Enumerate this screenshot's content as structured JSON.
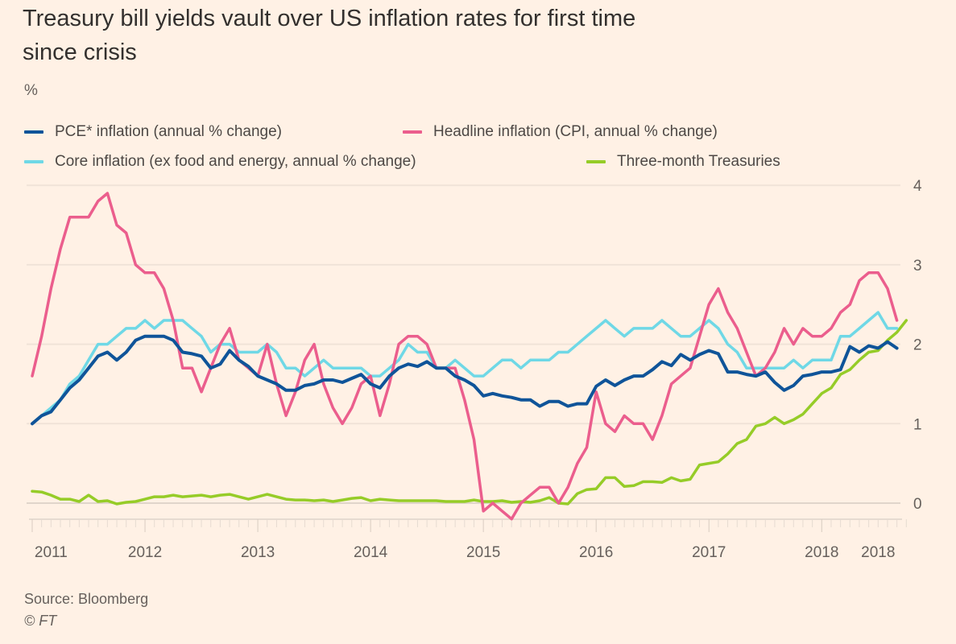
{
  "chart_data": {
    "type": "line",
    "title": "Treasury bill yields vault over US inflation rates for first time since crisis",
    "ylabel": "%",
    "ylim": [
      -0.2,
      4
    ],
    "yticks": [
      0,
      1,
      2,
      3,
      4
    ],
    "xlim": [
      "2011-01",
      "2018-10"
    ],
    "xticks": [
      {
        "x": "2011-03",
        "label": "2011"
      },
      {
        "x": "2012-01",
        "label": "2012"
      },
      {
        "x": "2013-01",
        "label": "2013"
      },
      {
        "x": "2014-01",
        "label": "2014"
      },
      {
        "x": "2015-01",
        "label": "2015"
      },
      {
        "x": "2016-01",
        "label": "2016"
      },
      {
        "x": "2017-01",
        "label": "2017"
      },
      {
        "x": "2018-01",
        "label": "2018"
      },
      {
        "x": "2018-07",
        "label": "2018"
      }
    ],
    "grid": true,
    "legend_placement": "top",
    "x_start": "2011-01",
    "x_step": "month",
    "series": [
      {
        "name": "PCE* inflation (annual % change)",
        "color": "#0f5499",
        "values": [
          1.0,
          1.1,
          1.15,
          1.3,
          1.45,
          1.55,
          1.7,
          1.85,
          1.9,
          1.8,
          1.9,
          2.05,
          2.1,
          2.1,
          2.1,
          2.05,
          1.9,
          1.88,
          1.85,
          1.7,
          1.75,
          1.92,
          1.8,
          1.72,
          1.6,
          1.55,
          1.5,
          1.42,
          1.42,
          1.48,
          1.5,
          1.55,
          1.55,
          1.52,
          1.57,
          1.62,
          1.5,
          1.45,
          1.6,
          1.7,
          1.75,
          1.72,
          1.78,
          1.7,
          1.7,
          1.6,
          1.55,
          1.48,
          1.35,
          1.38,
          1.35,
          1.33,
          1.3,
          1.3,
          1.22,
          1.28,
          1.28,
          1.22,
          1.25,
          1.25,
          1.47,
          1.55,
          1.48,
          1.55,
          1.6,
          1.6,
          1.68,
          1.78,
          1.73,
          1.87,
          1.8,
          1.87,
          1.92,
          1.88,
          1.65,
          1.65,
          1.62,
          1.6,
          1.65,
          1.52,
          1.42,
          1.48,
          1.6,
          1.62,
          1.65,
          1.65,
          1.68,
          1.97,
          1.9,
          1.98,
          1.95,
          2.03,
          1.95
        ]
      },
      {
        "name": "Headline inflation (CPI, annual % change)",
        "color": "#eb5e8d",
        "values": [
          1.6,
          2.1,
          2.7,
          3.2,
          3.6,
          3.6,
          3.6,
          3.8,
          3.9,
          3.5,
          3.4,
          3.0,
          2.9,
          2.9,
          2.7,
          2.3,
          1.7,
          1.7,
          1.4,
          1.7,
          2.0,
          2.2,
          1.8,
          1.7,
          1.6,
          2.0,
          1.5,
          1.1,
          1.4,
          1.8,
          2.0,
          1.5,
          1.2,
          1.0,
          1.2,
          1.5,
          1.6,
          1.1,
          1.5,
          2.0,
          2.1,
          2.1,
          2.0,
          1.7,
          1.7,
          1.7,
          1.3,
          0.8,
          -0.1,
          0.0,
          -0.1,
          -0.2,
          0.0,
          0.1,
          0.2,
          0.2,
          0.0,
          0.2,
          0.5,
          0.7,
          1.4,
          1.0,
          0.9,
          1.1,
          1.0,
          1.0,
          0.8,
          1.1,
          1.5,
          1.6,
          1.7,
          2.1,
          2.5,
          2.7,
          2.4,
          2.2,
          1.9,
          1.6,
          1.7,
          1.9,
          2.2,
          2.0,
          2.2,
          2.1,
          2.1,
          2.2,
          2.4,
          2.5,
          2.8,
          2.9,
          2.9,
          2.7,
          2.3
        ]
      },
      {
        "name": "Core inflation (ex food and energy, annual % change)",
        "color": "#6fd8e6",
        "values": [
          1.0,
          1.1,
          1.2,
          1.3,
          1.5,
          1.6,
          1.8,
          2.0,
          2.0,
          2.1,
          2.2,
          2.2,
          2.3,
          2.2,
          2.3,
          2.3,
          2.3,
          2.2,
          2.1,
          1.9,
          2.0,
          2.0,
          1.9,
          1.9,
          1.9,
          2.0,
          1.9,
          1.7,
          1.7,
          1.6,
          1.7,
          1.8,
          1.7,
          1.7,
          1.7,
          1.7,
          1.6,
          1.6,
          1.7,
          1.8,
          2.0,
          1.9,
          1.9,
          1.7,
          1.7,
          1.8,
          1.7,
          1.6,
          1.6,
          1.7,
          1.8,
          1.8,
          1.7,
          1.8,
          1.8,
          1.8,
          1.9,
          1.9,
          2.0,
          2.1,
          2.2,
          2.3,
          2.2,
          2.1,
          2.2,
          2.2,
          2.2,
          2.3,
          2.2,
          2.1,
          2.1,
          2.2,
          2.3,
          2.2,
          2.0,
          1.9,
          1.7,
          1.7,
          1.7,
          1.7,
          1.7,
          1.8,
          1.7,
          1.8,
          1.8,
          1.8,
          2.1,
          2.1,
          2.2,
          2.3,
          2.4,
          2.2,
          2.2
        ]
      },
      {
        "name": "Three-month Treasuries",
        "color": "#96cc28",
        "values": [
          0.15,
          0.14,
          0.1,
          0.05,
          0.05,
          0.02,
          0.1,
          0.02,
          0.03,
          -0.01,
          0.01,
          0.02,
          0.05,
          0.08,
          0.08,
          0.1,
          0.08,
          0.09,
          0.1,
          0.08,
          0.1,
          0.11,
          0.08,
          0.05,
          0.08,
          0.11,
          0.08,
          0.05,
          0.04,
          0.04,
          0.03,
          0.04,
          0.02,
          0.04,
          0.06,
          0.07,
          0.03,
          0.05,
          0.04,
          0.03,
          0.03,
          0.03,
          0.03,
          0.03,
          0.02,
          0.02,
          0.02,
          0.04,
          0.02,
          0.02,
          0.03,
          0.01,
          0.02,
          0.01,
          0.03,
          0.07,
          0.0,
          -0.01,
          0.12,
          0.17,
          0.18,
          0.32,
          0.32,
          0.21,
          0.22,
          0.27,
          0.27,
          0.26,
          0.32,
          0.28,
          0.3,
          0.48,
          0.5,
          0.52,
          0.62,
          0.75,
          0.8,
          0.97,
          1.0,
          1.08,
          1.0,
          1.05,
          1.12,
          1.25,
          1.38,
          1.45,
          1.62,
          1.68,
          1.8,
          1.9,
          1.92,
          2.05,
          2.15,
          2.3
        ]
      }
    ]
  },
  "header": {
    "title_line1": "Treasury bill yields vault over US inflation rates for first time",
    "title_line2": "since crisis",
    "unit": "%"
  },
  "footer": {
    "source": "Source: Bloomberg",
    "credit": "© FT"
  }
}
